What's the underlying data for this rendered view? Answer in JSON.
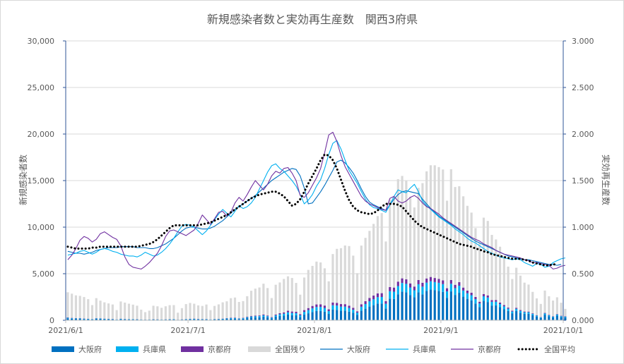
{
  "chart_data": {
    "type": "bar+line",
    "title": "新規感染者数と実効再生産数　関西3府県",
    "ylabel_left": "新規感染者数",
    "ylabel_right": "実効再生産数",
    "y_left_ticks": [
      "0",
      "5,000",
      "10,000",
      "15,000",
      "20,000",
      "25,000",
      "30,000"
    ],
    "y_right_ticks": [
      "0.000",
      "0.500",
      "1.000",
      "1.500",
      "2.000",
      "2.500",
      "3.000"
    ],
    "ylim_left": [
      0,
      30000
    ],
    "ylim_right": [
      0,
      3
    ],
    "x_ticks": [
      "2021/6/1",
      "2021/7/1",
      "2021/8/1",
      "2021/9/1",
      "2021/10/1"
    ],
    "x_range_days": [
      0,
      122
    ],
    "grid": "horizontal",
    "legend_position": "bottom",
    "bar_series": [
      {
        "name": "大阪府",
        "color": "#0070c0",
        "values": [
          210,
          170,
          150,
          150,
          130,
          110,
          80,
          160,
          150,
          120,
          110,
          100,
          60,
          120,
          100,
          90,
          90,
          80,
          60,
          50,
          60,
          80,
          70,
          60,
          70,
          80,
          90,
          40,
          70,
          90,
          110,
          120,
          100,
          90,
          90,
          60,
          90,
          100,
          110,
          150,
          170,
          180,
          130,
          160,
          250,
          300,
          310,
          320,
          390,
          310,
          200,
          380,
          470,
          500,
          610,
          550,
          540,
          360,
          620,
          750,
          890,
          1000,
          1000,
          920,
          680,
          1140,
          1120,
          1030,
          1040,
          930,
          800,
          570,
          1030,
          1240,
          1470,
          1620,
          1790,
          1800,
          1270,
          2330,
          2290,
          2790,
          3080,
          3000,
          2690,
          2460,
          3000,
          2780,
          3160,
          3290,
          3220,
          3160,
          3050,
          2410,
          3100,
          2720,
          2950,
          2530,
          2300,
          2140,
          1800,
          1420,
          2080,
          1960,
          1580,
          1600,
          1400,
          1200,
          1000,
          750,
          1000,
          800,
          700,
          700,
          560,
          400,
          250,
          600,
          420,
          300,
          500,
          350,
          300
        ]
      },
      {
        "name": "兵庫県",
        "color": "#00b0f0",
        "values": [
          60,
          50,
          45,
          40,
          40,
          35,
          30,
          40,
          35,
          35,
          30,
          28,
          20,
          30,
          28,
          25,
          25,
          22,
          18,
          15,
          15,
          20,
          20,
          18,
          20,
          25,
          25,
          15,
          20,
          28,
          30,
          35,
          30,
          30,
          30,
          20,
          30,
          35,
          40,
          50,
          60,
          65,
          50,
          60,
          80,
          100,
          110,
          120,
          140,
          120,
          80,
          140,
          170,
          200,
          240,
          230,
          220,
          170,
          280,
          340,
          390,
          420,
          430,
          400,
          300,
          470,
          460,
          430,
          420,
          390,
          330,
          240,
          420,
          500,
          570,
          640,
          690,
          700,
          500,
          790,
          780,
          880,
          920,
          910,
          830,
          760,
          870,
          830,
          880,
          900,
          880,
          860,
          830,
          690,
          820,
          730,
          760,
          660,
          600,
          550,
          470,
          380,
          500,
          480,
          400,
          390,
          340,
          290,
          240,
          190,
          230,
          200,
          160,
          160,
          130,
          100,
          70,
          130,
          110,
          80,
          110,
          90,
          80
        ]
      },
      {
        "name": "京都府",
        "color": "#7030a0",
        "values": [
          40,
          35,
          30,
          30,
          25,
          20,
          18,
          25,
          22,
          20,
          20,
          18,
          12,
          20,
          18,
          15,
          15,
          13,
          10,
          8,
          10,
          12,
          12,
          10,
          12,
          15,
          15,
          8,
          12,
          18,
          20,
          22,
          20,
          20,
          20,
          12,
          20,
          22,
          25,
          35,
          40,
          45,
          35,
          40,
          55,
          70,
          75,
          80,
          95,
          80,
          55,
          95,
          120,
          140,
          170,
          160,
          150,
          120,
          190,
          220,
          260,
          280,
          280,
          260,
          200,
          300,
          290,
          280,
          270,
          250,
          210,
          150,
          270,
          310,
          360,
          390,
          410,
          410,
          290,
          450,
          440,
          480,
          500,
          490,
          440,
          400,
          450,
          420,
          450,
          460,
          440,
          430,
          410,
          340,
          400,
          360,
          380,
          320,
          290,
          270,
          230,
          190,
          240,
          230,
          190,
          190,
          160,
          140,
          120,
          90,
          110,
          95,
          80,
          75,
          60,
          50,
          35,
          60,
          50,
          40,
          55,
          45,
          40
        ]
      },
      {
        "name": "全国残り",
        "color": "#d9d9d9",
        "values": [
          2700,
          2600,
          2450,
          2400,
          2300,
          2100,
          1500,
          2150,
          1900,
          1750,
          1650,
          1550,
          1000,
          1850,
          1750,
          1650,
          1550,
          1450,
          1050,
          800,
          950,
          1450,
          1400,
          1250,
          1400,
          1500,
          1500,
          750,
          1200,
          1600,
          1700,
          1600,
          1450,
          1400,
          1550,
          1000,
          1400,
          1550,
          1750,
          1800,
          2100,
          2150,
          1750,
          1800,
          2200,
          2700,
          2900,
          3000,
          3300,
          2950,
          2050,
          3200,
          3300,
          3600,
          3700,
          3600,
          3100,
          2100,
          3500,
          4100,
          4300,
          4600,
          4500,
          4000,
          3000,
          5200,
          5800,
          6000,
          6300,
          6400,
          5600,
          4100,
          6300,
          6800,
          7200,
          7700,
          8300,
          8600,
          6400,
          9400,
          9700,
          11000,
          11000,
          10600,
          9300,
          8500,
          9900,
          10700,
          11500,
          12000,
          12100,
          12000,
          11900,
          9400,
          11900,
          10500,
          10300,
          9800,
          9100,
          8600,
          7400,
          6300,
          8200,
          8000,
          7000,
          6500,
          6000,
          5300,
          4400,
          3400,
          4300,
          3700,
          3100,
          2900,
          2300,
          1800,
          1400,
          2400,
          2000,
          1700,
          1800,
          1400,
          800
        ]
      }
    ],
    "line_series": [
      {
        "name": "大阪府",
        "color": "#0070c0",
        "values": [
          0.74,
          0.73,
          0.72,
          0.72,
          0.71,
          0.72,
          0.73,
          0.75,
          0.76,
          0.77,
          0.78,
          0.78,
          0.78,
          0.79,
          0.79,
          0.79,
          0.79,
          0.78,
          0.78,
          0.78,
          0.77,
          0.77,
          0.78,
          0.8,
          0.82,
          0.85,
          0.88,
          0.92,
          0.96,
          0.99,
          1.0,
          1.0,
          0.99,
          0.98,
          0.98,
          0.99,
          1.01,
          1.04,
          1.07,
          1.11,
          1.15,
          1.19,
          1.22,
          1.25,
          1.28,
          1.31,
          1.34,
          1.38,
          1.42,
          1.46,
          1.5,
          1.53,
          1.56,
          1.59,
          1.61,
          1.63,
          1.62,
          1.55,
          1.42,
          1.25,
          1.26,
          1.32,
          1.38,
          1.45,
          1.53,
          1.61,
          1.7,
          1.72,
          1.69,
          1.64,
          1.58,
          1.5,
          1.41,
          1.33,
          1.27,
          1.24,
          1.22,
          1.2,
          1.18,
          1.24,
          1.3,
          1.35,
          1.38,
          1.39,
          1.38,
          1.37,
          1.36,
          1.3,
          1.25,
          1.2,
          1.16,
          1.12,
          1.09,
          1.06,
          1.03,
          1.0,
          0.97,
          0.94,
          0.91,
          0.88,
          0.85,
          0.83,
          0.81,
          0.79,
          0.77,
          0.75,
          0.73,
          0.71,
          0.69,
          0.68,
          0.67,
          0.66,
          0.65,
          0.65,
          0.64,
          0.63,
          0.62,
          0.61,
          0.6,
          0.6,
          0.59,
          0.6
        ]
      },
      {
        "name": "兵庫県",
        "color": "#00b0f0",
        "values": [
          0.7,
          0.71,
          0.72,
          0.74,
          0.75,
          0.73,
          0.71,
          0.73,
          0.76,
          0.77,
          0.76,
          0.74,
          0.73,
          0.71,
          0.7,
          0.69,
          0.69,
          0.68,
          0.7,
          0.73,
          0.71,
          0.69,
          0.7,
          0.73,
          0.77,
          0.82,
          0.88,
          0.95,
          1.01,
          1.03,
          1.02,
          1.0,
          0.96,
          0.92,
          0.96,
          1.02,
          1.08,
          1.14,
          1.19,
          1.15,
          1.11,
          1.17,
          1.23,
          1.2,
          1.22,
          1.26,
          1.32,
          1.41,
          1.5,
          1.59,
          1.66,
          1.68,
          1.63,
          1.6,
          1.55,
          1.5,
          1.44,
          1.35,
          1.25,
          1.29,
          1.35,
          1.44,
          1.51,
          1.63,
          1.78,
          1.9,
          1.93,
          1.84,
          1.72,
          1.61,
          1.54,
          1.47,
          1.38,
          1.3,
          1.24,
          1.21,
          1.2,
          1.18,
          1.16,
          1.24,
          1.33,
          1.4,
          1.38,
          1.37,
          1.42,
          1.46,
          1.38,
          1.28,
          1.23,
          1.19,
          1.15,
          1.11,
          1.08,
          1.05,
          1.02,
          0.98,
          0.95,
          0.92,
          0.88,
          0.85,
          0.83,
          0.8,
          0.77,
          0.74,
          0.72,
          0.7,
          0.68,
          0.67,
          0.66,
          0.65,
          0.66,
          0.65,
          0.62,
          0.6,
          0.58,
          0.61,
          0.6,
          0.57,
          0.58,
          0.62,
          0.64,
          0.66,
          0.67
        ]
      },
      {
        "name": "京都府",
        "color": "#7030a0",
        "values": [
          0.65,
          0.7,
          0.77,
          0.86,
          0.9,
          0.88,
          0.84,
          0.87,
          0.93,
          0.95,
          0.92,
          0.89,
          0.87,
          0.8,
          0.68,
          0.6,
          0.57,
          0.56,
          0.55,
          0.58,
          0.62,
          0.67,
          0.72,
          0.8,
          0.9,
          0.96,
          0.97,
          0.95,
          0.93,
          0.91,
          0.94,
          0.97,
          1.04,
          1.13,
          1.08,
          1.03,
          1.09,
          1.16,
          1.17,
          1.12,
          1.16,
          1.26,
          1.32,
          1.28,
          1.35,
          1.43,
          1.5,
          1.45,
          1.4,
          1.46,
          1.55,
          1.6,
          1.58,
          1.63,
          1.64,
          1.58,
          1.5,
          1.34,
          1.32,
          1.37,
          1.45,
          1.53,
          1.63,
          1.8,
          1.99,
          2.02,
          1.92,
          1.77,
          1.65,
          1.57,
          1.49,
          1.41,
          1.33,
          1.28,
          1.25,
          1.23,
          1.21,
          1.19,
          1.18,
          1.31,
          1.33,
          1.28,
          1.26,
          1.28,
          1.32,
          1.34,
          1.31,
          1.26,
          1.22,
          1.2,
          1.17,
          1.14,
          1.1,
          1.07,
          1.04,
          1.01,
          0.98,
          0.95,
          0.92,
          0.89,
          0.87,
          0.85,
          0.82,
          0.8,
          0.78,
          0.75,
          0.73,
          0.71,
          0.7,
          0.69,
          0.68,
          0.67,
          0.65,
          0.64,
          0.62,
          0.62,
          0.61,
          0.6,
          0.59,
          0.55,
          0.56,
          0.58,
          0.59
        ]
      },
      {
        "name": "全国平均",
        "color": "#000000",
        "dotted": true,
        "values": [
          0.79,
          0.78,
          0.77,
          0.77,
          0.77,
          0.77,
          0.78,
          0.78,
          0.79,
          0.79,
          0.79,
          0.79,
          0.79,
          0.79,
          0.79,
          0.79,
          0.79,
          0.79,
          0.8,
          0.81,
          0.82,
          0.84,
          0.87,
          0.91,
          0.95,
          0.99,
          1.02,
          1.02,
          1.02,
          1.02,
          1.02,
          1.02,
          1.02,
          1.03,
          1.04,
          1.05,
          1.07,
          1.09,
          1.11,
          1.13,
          1.16,
          1.19,
          1.22,
          1.25,
          1.28,
          1.31,
          1.33,
          1.35,
          1.36,
          1.37,
          1.38,
          1.38,
          1.36,
          1.33,
          1.28,
          1.23,
          1.25,
          1.3,
          1.38,
          1.47,
          1.55,
          1.63,
          1.72,
          1.78,
          1.77,
          1.72,
          1.63,
          1.51,
          1.39,
          1.29,
          1.22,
          1.18,
          1.16,
          1.15,
          1.14,
          1.15,
          1.18,
          1.22,
          1.25,
          1.25,
          1.25,
          1.24,
          1.22,
          1.17,
          1.12,
          1.07,
          1.03,
          1.0,
          0.98,
          0.96,
          0.94,
          0.92,
          0.9,
          0.88,
          0.86,
          0.84,
          0.82,
          0.81,
          0.8,
          0.79,
          0.77,
          0.76,
          0.74,
          0.73,
          0.71,
          0.7,
          0.69,
          0.68,
          0.67,
          0.66,
          0.66,
          0.66,
          0.65,
          0.64,
          0.62,
          0.61,
          0.6,
          0.59,
          0.59,
          0.6,
          0.6
        ]
      }
    ]
  }
}
